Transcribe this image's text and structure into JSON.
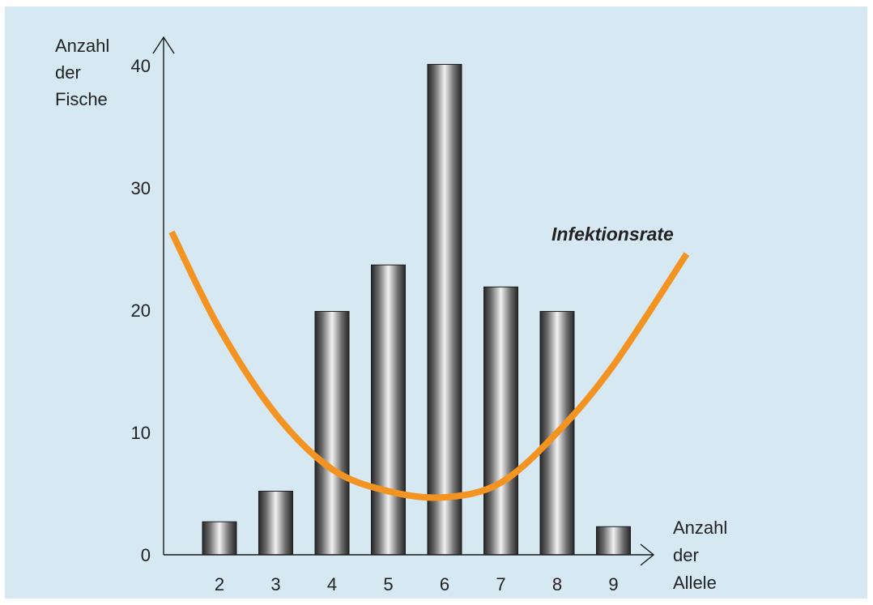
{
  "chart_data": {
    "type": "bar",
    "categories": [
      "2",
      "3",
      "4",
      "5",
      "6",
      "7",
      "8",
      "9"
    ],
    "values": [
      2.7,
      5.2,
      19.9,
      23.7,
      40.1,
      21.9,
      19.9,
      2.3
    ],
    "ylim": [
      0,
      40
    ],
    "yticks": [
      "0",
      "10",
      "20",
      "30",
      "40"
    ],
    "ylabel_lines": [
      "Anzahl",
      "der",
      "Fische"
    ],
    "xlabel_lines": [
      "Anzahl",
      "der",
      "Allele"
    ],
    "curve": {
      "label": "Infektionsrate",
      "color": "#f39422",
      "x": [
        1.15,
        2,
        3,
        4,
        5,
        6,
        7,
        8,
        9,
        10.3
      ],
      "y": [
        26.4,
        18.5,
        11.5,
        7.0,
        5.2,
        4.7,
        5.9,
        10.0,
        15.5,
        24.6
      ]
    },
    "bar_color": "#9a9a9a",
    "grid": false
  }
}
